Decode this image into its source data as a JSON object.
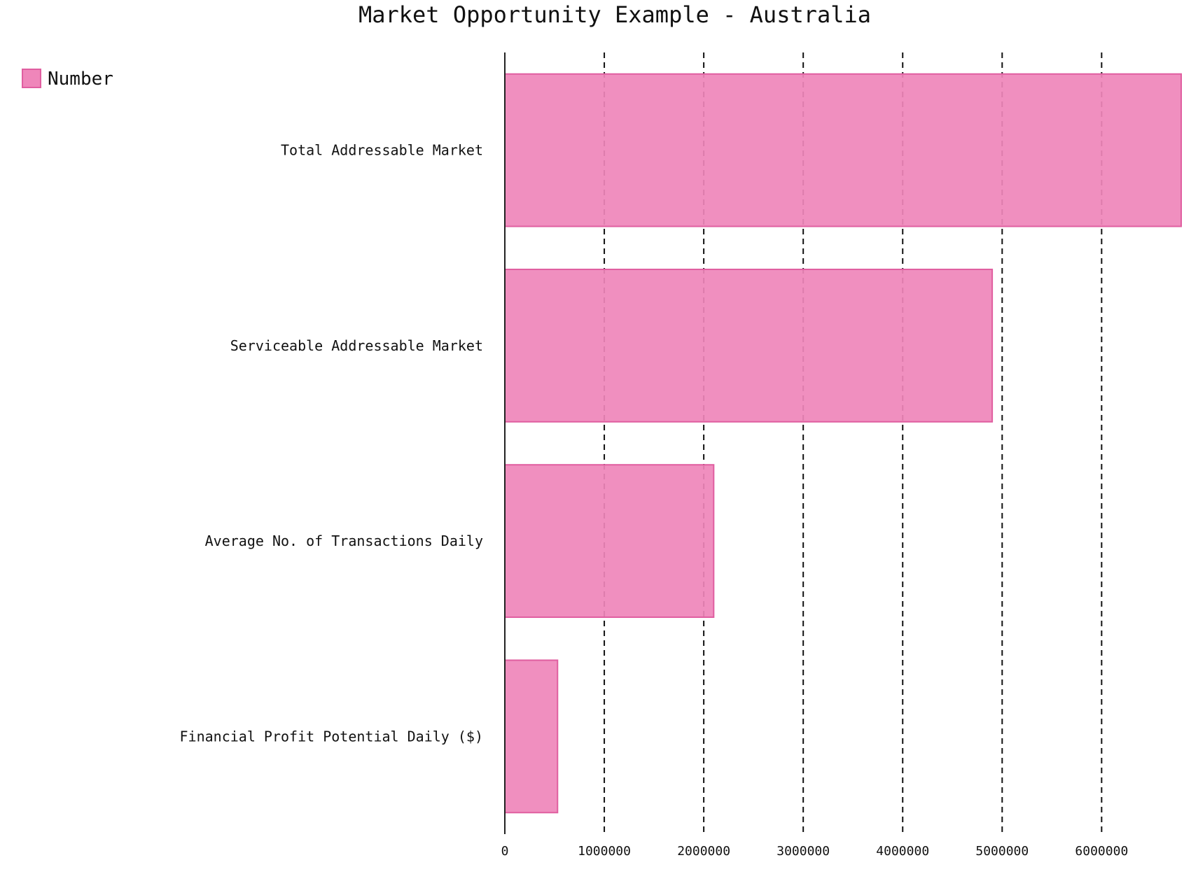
{
  "chart_data": {
    "type": "bar",
    "orientation": "horizontal",
    "title": "Market Opportunity Example - Australia",
    "legend": {
      "position": "top-left",
      "entries": [
        "Number"
      ]
    },
    "categories": [
      "Total Addressable Market",
      "Serviceable Addressable Market",
      "Average No. of Transactions Daily",
      "Financial Profit Potential Daily ($)"
    ],
    "series": [
      {
        "name": "Number",
        "values": [
          6800000,
          4900000,
          2100000,
          530000
        ]
      }
    ],
    "xlim": [
      0,
      6800000
    ],
    "xticks": [
      0,
      1000000,
      2000000,
      3000000,
      4000000,
      5000000,
      6000000
    ],
    "xtick_labels": [
      "0",
      "1000000",
      "2000000",
      "3000000",
      "4000000",
      "5000000",
      "6000000"
    ],
    "xlabel": "",
    "ylabel": "",
    "grid": {
      "x": true,
      "y": false,
      "style": "dashed"
    },
    "colors": {
      "bar_fill": "#ef86ba",
      "bar_stroke": "#e05ea0",
      "grid": "#111111",
      "axis": "#222222"
    }
  }
}
